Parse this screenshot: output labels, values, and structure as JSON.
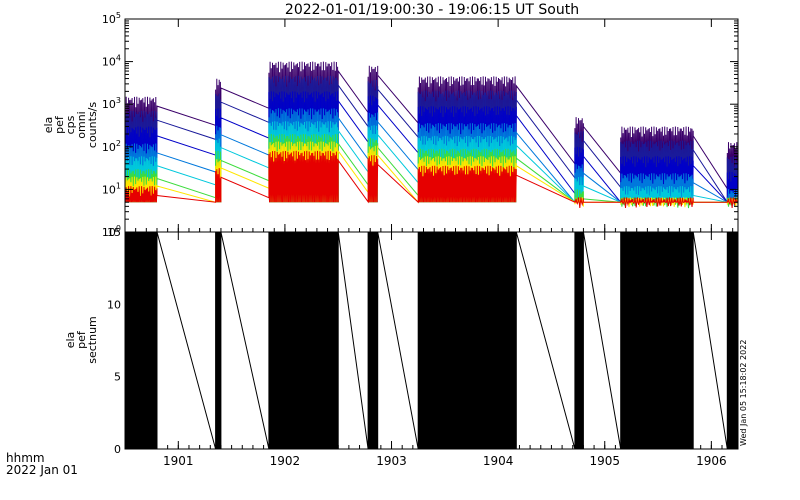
{
  "title": "2022-01-01/19:00:30 - 19:06:15 UT    South",
  "footer": {
    "line1": "hhmm",
    "line2": "2022 Jan 01"
  },
  "timestamp": "Wed Jan 05 15:18:02 2022",
  "colors": {
    "axis": "#000000",
    "trace_purple": "#3a006a",
    "trace_blue": "#0000c8",
    "trace_cyan": "#00c8dc",
    "trace_green": "#3cdc3c",
    "trace_yellow": "#ffe600",
    "trace_orange": "#ff8c00",
    "trace_red": "#e60000"
  },
  "chart_data": [
    {
      "type": "line",
      "ylabel": [
        "ela",
        "pef",
        "cps",
        "omni",
        "counts/s"
      ],
      "yscale": "log",
      "ylim": [
        1,
        100000
      ],
      "yticks": [
        "10^0",
        "10^1",
        "10^2",
        "10^3",
        "10^4",
        "10^5"
      ],
      "xlim": [
        1900.5,
        1906.25
      ],
      "xticks": [
        "1901",
        "1902",
        "1903",
        "1904",
        "1905",
        "1906"
      ],
      "energy_channels": 8,
      "series": [
        {
          "color": "#3a006a",
          "peak": 1500
        },
        {
          "color": "#1a1a9a",
          "peak": 700
        },
        {
          "color": "#0000c8",
          "peak": 300
        },
        {
          "color": "#0078dc",
          "peak": 120
        },
        {
          "color": "#00c8dc",
          "peak": 60
        },
        {
          "color": "#3cdc3c",
          "peak": 30
        },
        {
          "color": "#ffe600",
          "peak": 20
        },
        {
          "color": "#e60000",
          "peak": 12
        }
      ],
      "bursts": [
        {
          "start": 1900.5,
          "end": 1900.8,
          "peak": 1500
        },
        {
          "start": 1901.35,
          "end": 1901.4,
          "peak": 4000
        },
        {
          "start": 1901.85,
          "end": 1902.5,
          "peak": 10000
        },
        {
          "start": 1902.78,
          "end": 1902.87,
          "peak": 8000
        },
        {
          "start": 1903.25,
          "end": 1904.17,
          "peak": 4500
        },
        {
          "start": 1904.72,
          "end": 1904.8,
          "peak": 500
        },
        {
          "start": 1905.15,
          "end": 1905.83,
          "peak": 300
        },
        {
          "start": 1906.15,
          "end": 1906.25,
          "peak": 130
        }
      ],
      "floor": 5
    },
    {
      "type": "line",
      "ylabel": [
        "ela",
        "pef",
        "sectnum"
      ],
      "ylim": [
        0,
        15
      ],
      "yticks": [
        "0",
        "5",
        "10",
        "15"
      ],
      "xlim": [
        1900.5,
        1906.25
      ],
      "xticks": [
        "1901",
        "1902",
        "1903",
        "1904",
        "1905",
        "1906"
      ],
      "bursts": [
        {
          "start": 1900.5,
          "end": 1900.8
        },
        {
          "start": 1901.35,
          "end": 1901.4
        },
        {
          "start": 1901.85,
          "end": 1902.5
        },
        {
          "start": 1902.78,
          "end": 1902.87
        },
        {
          "start": 1903.25,
          "end": 1904.17
        },
        {
          "start": 1904.72,
          "end": 1904.8
        },
        {
          "start": 1905.15,
          "end": 1905.83
        },
        {
          "start": 1906.15,
          "end": 1906.25
        }
      ]
    }
  ]
}
